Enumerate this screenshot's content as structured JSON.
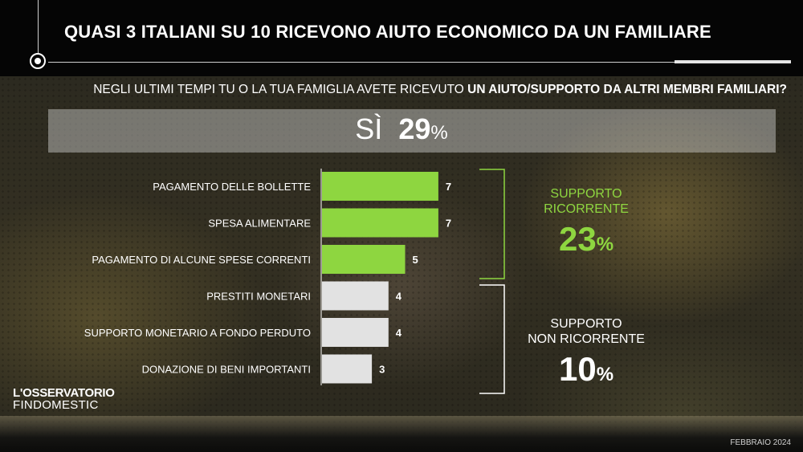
{
  "header": {
    "title": "QUASI 3 ITALIANI SU 10 RICEVONO AIUTO ECONOMICO DA UN FAMILIARE"
  },
  "question": {
    "prefix": "NEGLI ULTIMI TEMPI TU O LA TUA FAMIGLIA AVETE RICEVUTO ",
    "bold": "UN AIUTO/SUPPORTO DA ALTRI MEMBRI FAMILIARI?"
  },
  "yes": {
    "label": "SÌ",
    "value": "29",
    "unit": "%"
  },
  "chart_data": {
    "type": "bar",
    "orientation": "horizontal",
    "categories": [
      "PAGAMENTO DELLE BOLLETTE",
      "SPESA ALIMENTARE",
      "PAGAMENTO DI ALCUNE SPESE CORRENTI",
      "PRESTITI MONETARI",
      "SUPPORTO MONETARIO A FONDO PERDUTO",
      "DONAZIONE DI BENI IMPORTANTI"
    ],
    "values": [
      7,
      7,
      5,
      4,
      4,
      3
    ],
    "bar_colors": [
      "#8ed640",
      "#8ed640",
      "#8ed640",
      "#e2e2e2",
      "#e2e2e2",
      "#e2e2e2"
    ],
    "xlim": [
      0,
      7.5
    ],
    "grid": false
  },
  "groups": [
    {
      "label_line1": "SUPPORTO",
      "label_line2": "RICORRENTE",
      "value": "23",
      "unit": "%",
      "color": "#8ed640"
    },
    {
      "label_line1": "SUPPORTO",
      "label_line2": "NON RICORRENTE",
      "value": "10",
      "unit": "%",
      "color": "#ffffff"
    }
  ],
  "logo": {
    "line1": "L'OSSERVATORIO",
    "line2": "FINDOMESTIC"
  },
  "date": "FEBBRAIO 2024"
}
